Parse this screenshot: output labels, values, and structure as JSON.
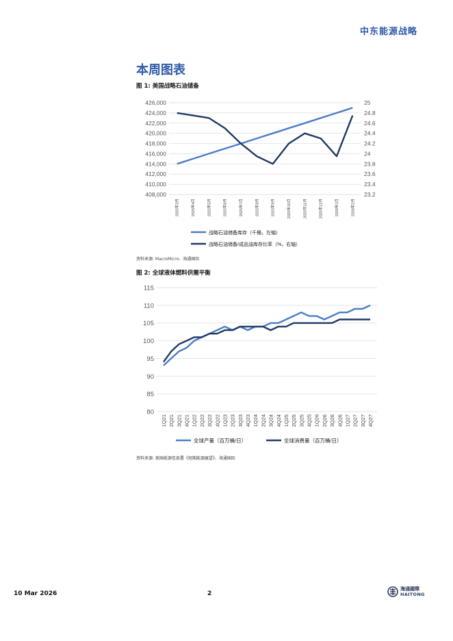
{
  "header": {
    "brand": "中东能源战略"
  },
  "section": {
    "title": "本周图表"
  },
  "figure1": {
    "caption": "图 1:  美国战略石油储备",
    "source": "资料来源:  MacroMicro、海通国际",
    "chart_data": {
      "type": "line",
      "categories": [
        "2025年3月",
        "2025年4月",
        "2025年5月",
        "2025年6月",
        "2025年7月",
        "2025年8月",
        "2025年9月",
        "2025年10月",
        "2025年11月",
        "2025年12月",
        "2026年1月",
        "2026年2月"
      ],
      "series": [
        {
          "name": "战略石油储备库存（千桶，左轴）",
          "axis": "left",
          "color": "#4a7cc7",
          "values": [
            414000,
            415000,
            416000,
            417000,
            418000,
            419000,
            420000,
            421000,
            422000,
            423000,
            424000,
            425000
          ]
        },
        {
          "name": "战略石油储备/成品油库存比率（%，右轴）",
          "axis": "right",
          "color": "#1f3864",
          "values": [
            24.8,
            24.75,
            24.7,
            24.5,
            24.2,
            23.95,
            23.8,
            24.2,
            24.4,
            24.3,
            23.95,
            24.75
          ]
        }
      ],
      "left_ticks": [
        "426,000",
        "424,000",
        "422,000",
        "420,000",
        "418,000",
        "416,000",
        "414,000",
        "412,000",
        "410,000",
        "408,000"
      ],
      "right_ticks": [
        "25",
        "24.8",
        "24.6",
        "24.4",
        "24.2",
        "24",
        "23.8",
        "23.6",
        "23.4",
        "23.2"
      ],
      "ylim_left": [
        408000,
        426000
      ],
      "ylim_right": [
        23.2,
        25
      ],
      "legend": "bottom",
      "grid": true
    }
  },
  "figure2": {
    "caption": "图 2:  全球液体燃料供需平衡",
    "source": "资料来源:  美国能源信息署《短期能源展望》、海通国际",
    "chart_data": {
      "type": "line",
      "categories": [
        "1Q21",
        "2Q21",
        "3Q21",
        "4Q21",
        "1Q22",
        "2Q22",
        "3Q22",
        "4Q22",
        "1Q23",
        "2Q23",
        "3Q23",
        "4Q23",
        "1Q24",
        "2Q24",
        "3Q24",
        "4Q24",
        "1Q25",
        "2Q25",
        "3Q25",
        "4Q25",
        "1Q26",
        "2Q26",
        "3Q26",
        "4Q26",
        "1Q27",
        "2Q27",
        "3Q27",
        "4Q27"
      ],
      "series": [
        {
          "name": "全球产量（百万桶/日）",
          "color": "#4a7cc7",
          "values": [
            93,
            95,
            97,
            98,
            100,
            101,
            102,
            103,
            104,
            103,
            104,
            103,
            104,
            104,
            105,
            105,
            106,
            107,
            108,
            107,
            107,
            106,
            107,
            108,
            108,
            109,
            109,
            110
          ]
        },
        {
          "name": "全球消费量（百万桶/日）",
          "color": "#1f3864",
          "values": [
            94,
            97,
            99,
            100,
            101,
            101,
            102,
            102,
            103,
            103,
            104,
            104,
            104,
            104,
            103,
            104,
            104,
            105,
            105,
            105,
            105,
            105,
            105,
            106,
            106,
            106,
            106,
            106
          ]
        }
      ],
      "y_ticks": [
        "115",
        "110",
        "105",
        "100",
        "95",
        "90",
        "85",
        "80"
      ],
      "ylim": [
        80,
        115
      ],
      "legend": "bottom",
      "grid": true
    }
  },
  "footer": {
    "date": "10 Mar 2026",
    "page": "2",
    "logo_cn": "海通國際",
    "logo_en": "HAITONG"
  }
}
